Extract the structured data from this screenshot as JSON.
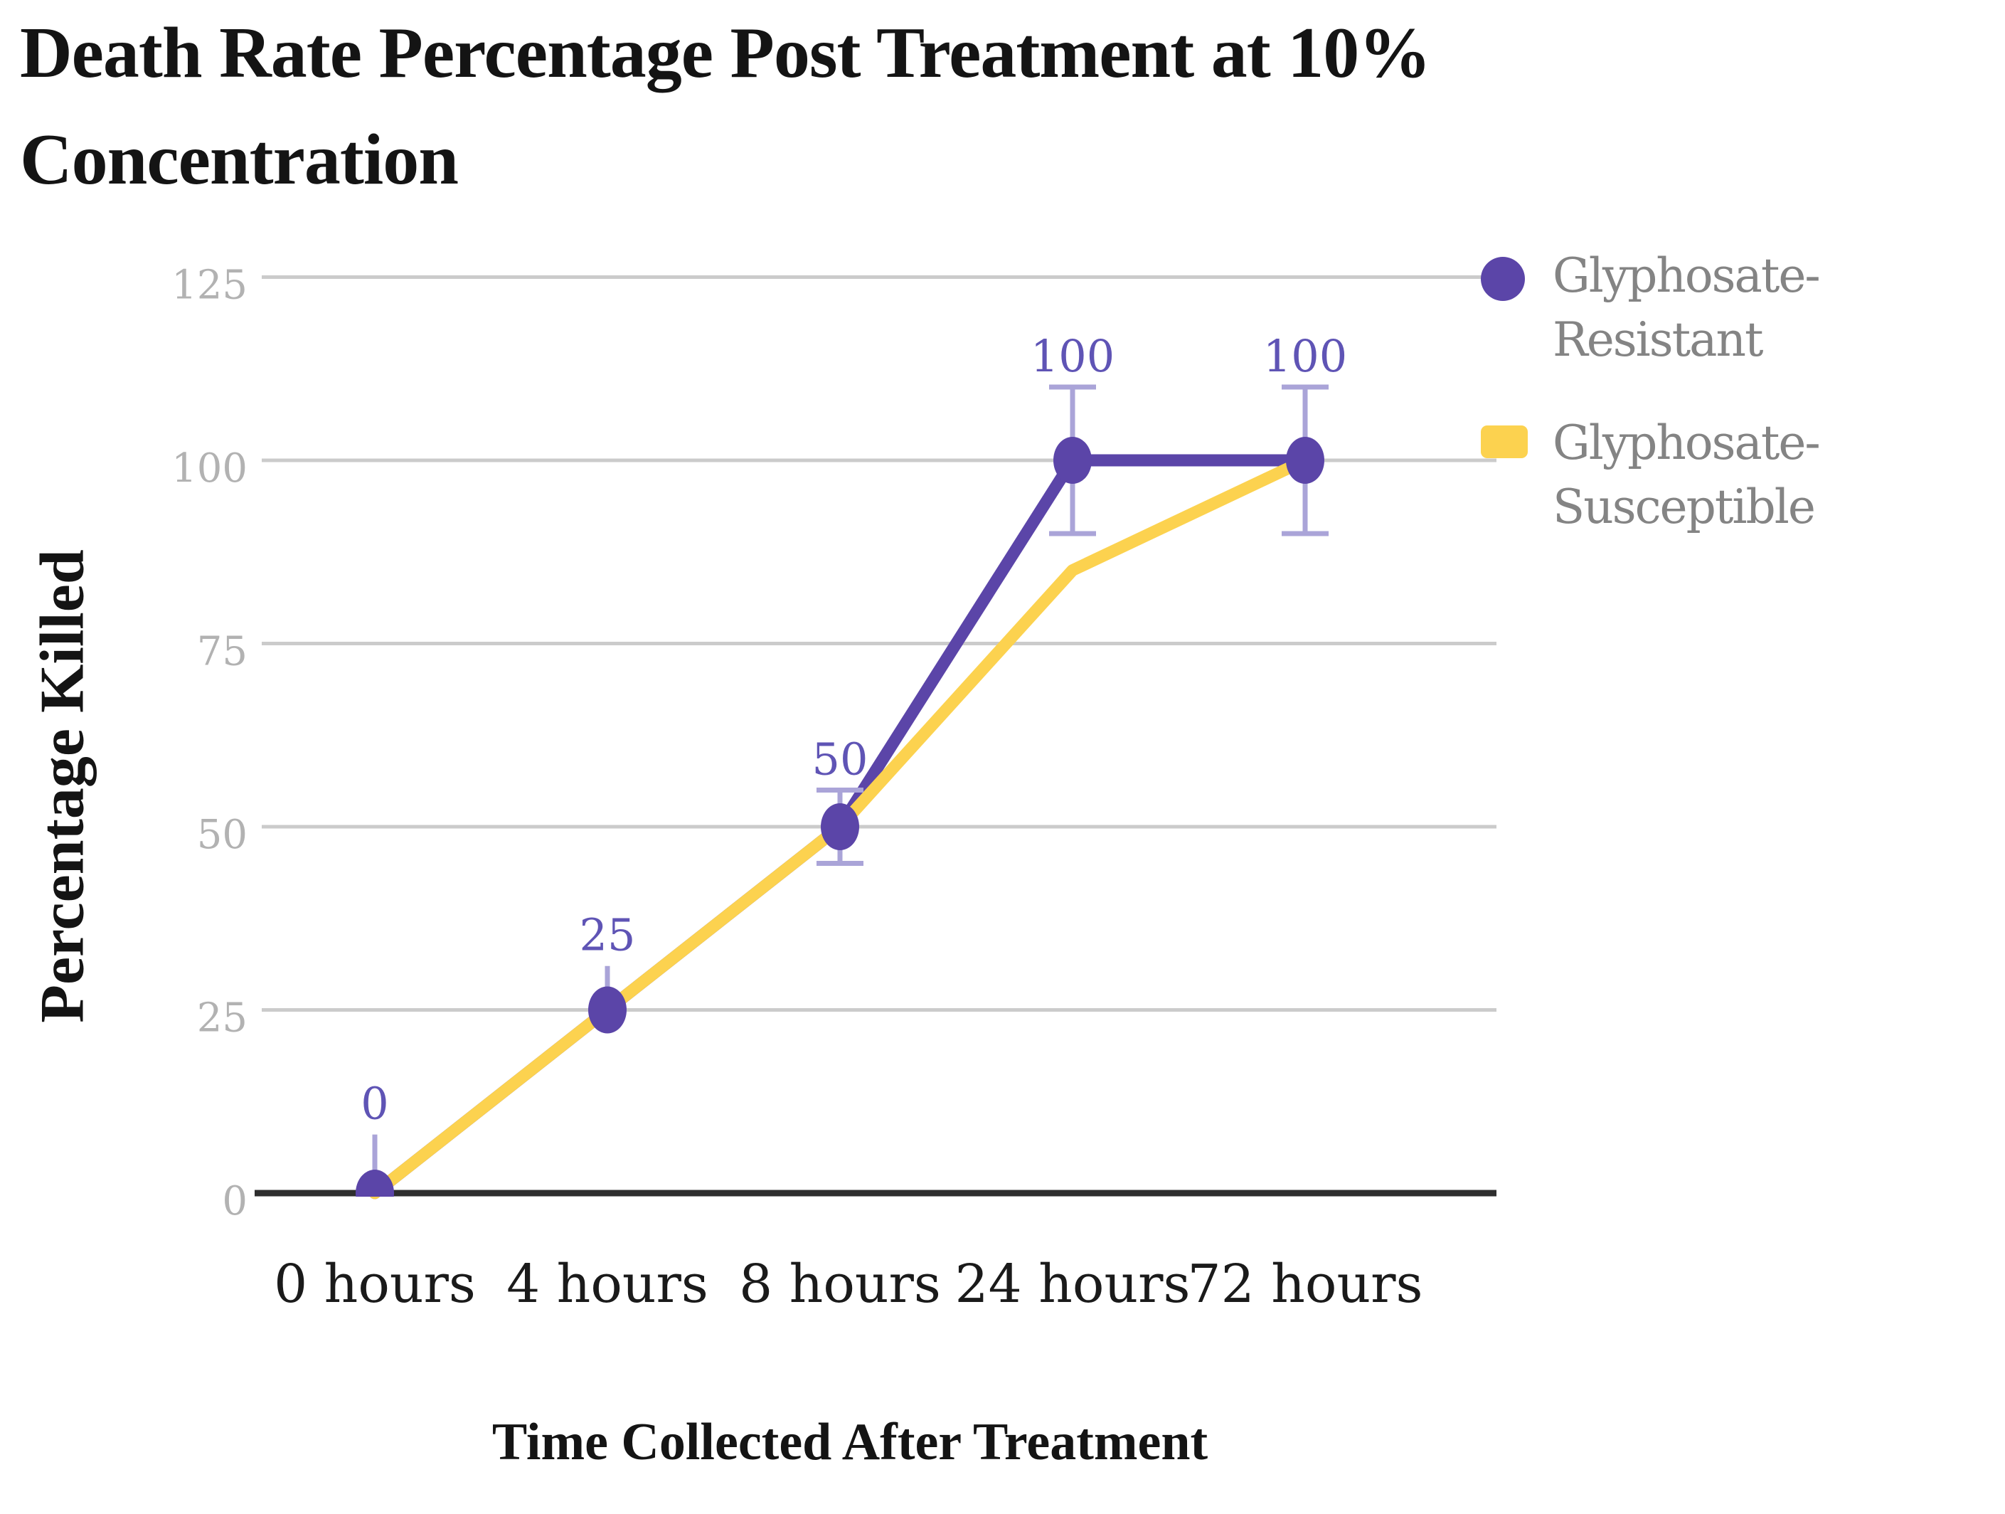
{
  "title": "Death Rate Percentage Post Treatment at 10% Concentration",
  "legend": {
    "position": "right",
    "items": [
      {
        "label": "Glyphosate-Resistant",
        "color": "#5b45a8",
        "marker": "circle"
      },
      {
        "label": "Glyphosate-Susceptible",
        "color": "#fcd24f",
        "marker": "bar"
      }
    ]
  },
  "chart_data": {
    "type": "line",
    "title": "Death Rate Percentage Post Treatment at 10% Concentration",
    "xlabel": "Time Collected After Treatment",
    "ylabel": "Percentage Killed",
    "categories": [
      "0 hours",
      "4 hours",
      "8 hours",
      "24 hours",
      "72 hours"
    ],
    "series": [
      {
        "name": "Glyphosate-Resistant",
        "color": "#5b45a8",
        "values": [
          0,
          25,
          50,
          100,
          100
        ],
        "point_labels": [
          "0",
          "25",
          "50",
          "100",
          "100"
        ],
        "error_bars": [
          {
            "low": 0,
            "high": 8,
            "caps": false
          },
          {
            "low": 25,
            "high": 31,
            "caps": false
          },
          {
            "low": 45,
            "high": 55,
            "caps": true
          },
          {
            "low": 90,
            "high": 110,
            "caps": true
          },
          {
            "low": 90,
            "high": 110,
            "caps": true
          }
        ]
      },
      {
        "name": "Glyphosate-Susceptible",
        "color": "#fcd24f",
        "values": [
          0,
          25,
          50,
          85,
          100
        ]
      }
    ],
    "yticks": [
      {
        "value": 0,
        "label": "0"
      },
      {
        "value": 25,
        "label": "25"
      },
      {
        "value": 50,
        "label": "50"
      },
      {
        "value": 75,
        "label": "75"
      },
      {
        "value": 100,
        "label": "100"
      },
      {
        "value": 125,
        "label": "125"
      }
    ],
    "ylim": [
      0,
      125
    ],
    "grid": true,
    "legend_position": "right"
  },
  "colors": {
    "grid": "#cbcbcb",
    "axis": "#2e2e2e",
    "error_bar": "#aaa4d8",
    "data_label": "#5f54b5",
    "y_tick_label": "#b2b2b2",
    "x_tick_label": "#1a1a1a",
    "legend_text": "#848484",
    "title_text": "#141414",
    "background": "#ffffff"
  }
}
